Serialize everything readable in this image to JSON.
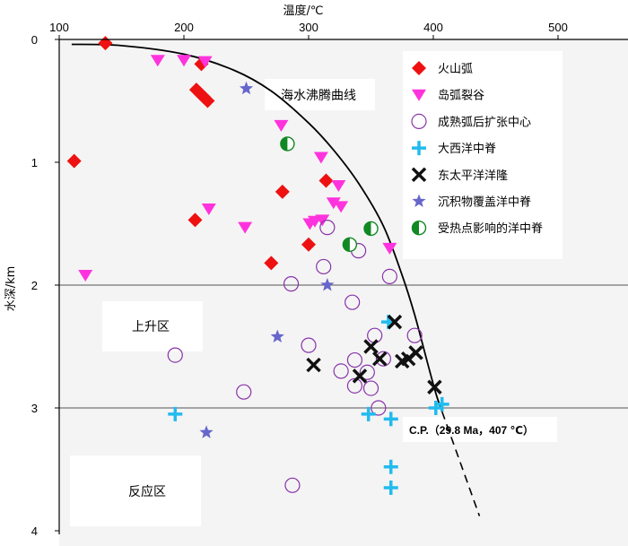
{
  "chart_data": {
    "type": "scatter",
    "xlabel": "温度/℃",
    "ylabel": "水深/km",
    "xlim": [
      100,
      500
    ],
    "ylim": [
      0,
      4
    ],
    "x_axis_position": "top",
    "y_inverted": true,
    "x_ticks": [
      "100",
      "200",
      "300",
      "400",
      "500"
    ],
    "y_ticks": [
      "0",
      "1",
      "2",
      "3",
      "4"
    ],
    "reference_lines_depth": [
      2,
      3
    ],
    "region_labels": {
      "boiling_curve": "海水沸腾曲线",
      "upwelling": "上升区",
      "reaction": "反应区"
    },
    "annotation": "C.P.（29.8 Ma，407 ℃）",
    "boiling_curve": [
      [
        110,
        0.04
      ],
      [
        150,
        0.05
      ],
      [
        200,
        0.12
      ],
      [
        240,
        0.25
      ],
      [
        270,
        0.42
      ],
      [
        300,
        0.68
      ],
      [
        320,
        0.9
      ],
      [
        340,
        1.17
      ],
      [
        360,
        1.52
      ],
      [
        375,
        1.92
      ],
      [
        385,
        2.24
      ],
      [
        395,
        2.62
      ],
      [
        402,
        2.88
      ],
      [
        407,
        3.03
      ]
    ],
    "extrapolated_curve": [
      [
        407,
        3.03
      ],
      [
        437,
        3.88
      ]
    ],
    "series": [
      {
        "name": "火山弧",
        "marker": "diamond",
        "color": "#ee1111",
        "points": [
          [
            137,
            0.03
          ],
          [
            214,
            0.2
          ],
          [
            210,
            0.41
          ],
          [
            213,
            0.44
          ],
          [
            216,
            0.47
          ],
          [
            219,
            0.5
          ],
          [
            112,
            0.99
          ],
          [
            314,
            1.15
          ],
          [
            279,
            1.24
          ],
          [
            209,
            1.47
          ],
          [
            300,
            1.67
          ],
          [
            270,
            1.82
          ]
        ]
      },
      {
        "name": "岛弧裂谷",
        "marker": "triangle-down",
        "color": "#ff33dd",
        "points": [
          [
            179,
            0.17
          ],
          [
            200,
            0.17
          ],
          [
            217,
            0.18
          ],
          [
            278,
            0.7
          ],
          [
            310,
            0.96
          ],
          [
            220,
            1.38
          ],
          [
            324,
            1.19
          ],
          [
            301,
            1.5
          ],
          [
            305,
            1.48
          ],
          [
            311,
            1.47
          ],
          [
            320,
            1.33
          ],
          [
            326,
            1.36
          ],
          [
            249,
            1.53
          ],
          [
            365,
            1.7
          ],
          [
            121,
            1.92
          ]
        ]
      },
      {
        "name": "成熟弧后扩张中心",
        "marker": "circle-open",
        "color": "#8833aa",
        "points": [
          [
            315,
            1.53
          ],
          [
            340,
            1.72
          ],
          [
            312,
            1.85
          ],
          [
            286,
            1.99
          ],
          [
            365,
            1.93
          ],
          [
            335,
            2.14
          ],
          [
            353,
            2.41
          ],
          [
            385,
            2.41
          ],
          [
            300,
            2.49
          ],
          [
            337,
            2.61
          ],
          [
            360,
            2.6
          ],
          [
            193,
            2.57
          ],
          [
            326,
            2.7
          ],
          [
            347,
            2.71
          ],
          [
            337,
            2.82
          ],
          [
            350,
            2.84
          ],
          [
            248,
            2.87
          ],
          [
            356,
            3.0
          ],
          [
            287,
            3.63
          ]
        ]
      },
      {
        "name": "大西洋中脊",
        "marker": "plus",
        "color": "#22bbee",
        "points": [
          [
            364,
            2.3
          ],
          [
            407,
            2.97
          ],
          [
            402,
            3.0
          ],
          [
            193,
            3.05
          ],
          [
            348,
            3.05
          ],
          [
            366,
            3.09
          ],
          [
            366,
            3.48
          ],
          [
            366,
            3.65
          ]
        ]
      },
      {
        "name": "东太平洋洋隆",
        "marker": "x",
        "color": "#111111",
        "points": [
          [
            369,
            2.3
          ],
          [
            350,
            2.5
          ],
          [
            386,
            2.55
          ],
          [
            357,
            2.6
          ],
          [
            375,
            2.62
          ],
          [
            380,
            2.6
          ],
          [
            304,
            2.65
          ],
          [
            341,
            2.74
          ],
          [
            401,
            2.83
          ]
        ]
      },
      {
        "name": "沉积物覆盖洋中脊",
        "marker": "star",
        "color": "#6666cc",
        "points": [
          [
            250,
            0.4
          ],
          [
            315,
            2.0
          ],
          [
            275,
            2.42
          ],
          [
            218,
            3.2
          ]
        ]
      },
      {
        "name": "受热点影响的洋中脊",
        "marker": "half-circle",
        "color": "#118822",
        "points": [
          [
            283,
            0.85
          ],
          [
            333,
            1.67
          ],
          [
            350,
            1.54
          ]
        ]
      }
    ]
  }
}
